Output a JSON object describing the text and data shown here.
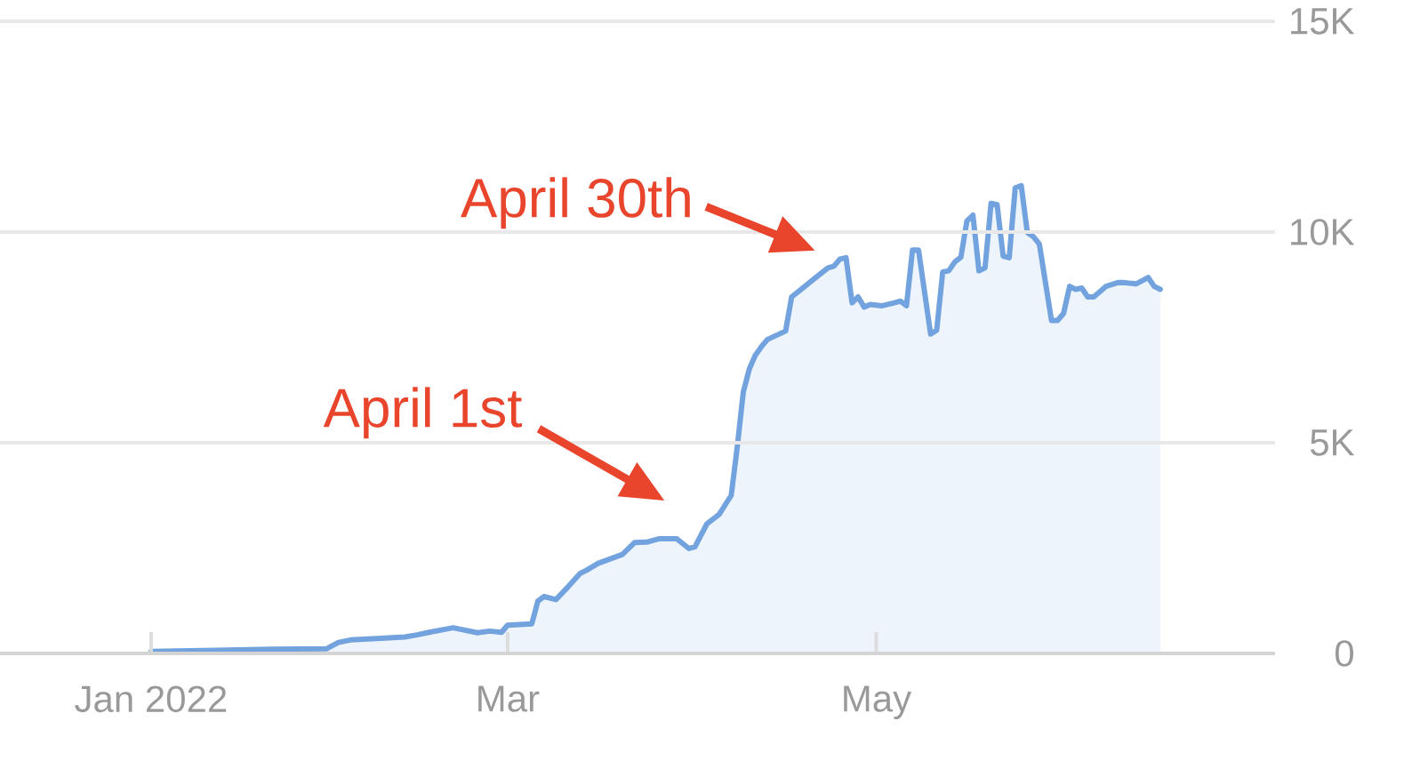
{
  "chart_data": {
    "type": "area",
    "x": [
      "2022-01-01",
      "2022-01-21",
      "2022-01-30",
      "2022-02-01",
      "2022-02-03",
      "2022-02-08",
      "2022-02-12",
      "2022-02-14",
      "2022-02-16",
      "2022-02-20",
      "2022-02-24",
      "2022-02-26",
      "2022-02-28",
      "2022-03-01",
      "2022-03-05",
      "2022-03-06",
      "2022-03-07",
      "2022-03-09",
      "2022-03-11",
      "2022-03-13",
      "2022-03-14",
      "2022-03-16",
      "2022-03-20",
      "2022-03-22",
      "2022-03-24",
      "2022-03-26",
      "2022-03-29",
      "2022-03-31",
      "2022-04-01",
      "2022-04-03",
      "2022-04-05",
      "2022-04-07",
      "2022-04-08",
      "2022-04-09",
      "2022-04-10",
      "2022-04-11",
      "2022-04-12",
      "2022-04-13",
      "2022-04-16",
      "2022-04-17",
      "2022-04-19",
      "2022-04-21",
      "2022-04-23",
      "2022-04-24",
      "2022-04-25",
      "2022-04-26",
      "2022-04-27",
      "2022-04-28",
      "2022-04-29",
      "2022-04-30",
      "2022-05-02",
      "2022-05-04",
      "2022-05-05",
      "2022-05-06",
      "2022-05-07",
      "2022-05-08",
      "2022-05-10",
      "2022-05-11",
      "2022-05-12",
      "2022-05-13",
      "2022-05-14",
      "2022-05-15",
      "2022-05-16",
      "2022-05-17",
      "2022-05-18",
      "2022-05-19",
      "2022-05-20",
      "2022-05-21",
      "2022-05-22",
      "2022-05-23",
      "2022-05-24",
      "2022-05-25",
      "2022-05-26",
      "2022-05-27",
      "2022-05-28",
      "2022-05-30",
      "2022-05-31",
      "2022-06-01",
      "2022-06-02",
      "2022-06-03",
      "2022-06-04",
      "2022-06-05",
      "2022-06-06",
      "2022-06-08",
      "2022-06-10",
      "2022-06-11",
      "2022-06-13",
      "2022-06-15",
      "2022-06-16",
      "2022-06-17"
    ],
    "values": [
      50,
      100,
      110,
      260,
      320,
      360,
      390,
      440,
      500,
      610,
      490,
      530,
      500,
      670,
      700,
      1240,
      1350,
      1280,
      1580,
      1900,
      1970,
      2140,
      2350,
      2630,
      2640,
      2720,
      2720,
      2490,
      2530,
      3080,
      3300,
      3750,
      4900,
      6200,
      6750,
      7080,
      7280,
      7450,
      7650,
      8460,
      8690,
      8920,
      9150,
      9190,
      9360,
      9390,
      8320,
      8460,
      8220,
      8280,
      8250,
      8320,
      8360,
      8250,
      9570,
      9570,
      7580,
      7670,
      9050,
      9080,
      9290,
      9400,
      10260,
      10400,
      9080,
      9150,
      10680,
      10650,
      9430,
      9390,
      11050,
      11100,
      9990,
      9890,
      9710,
      7900,
      7900,
      8070,
      8710,
      8640,
      8670,
      8460,
      8460,
      8710,
      8800,
      8800,
      8770,
      8920,
      8710,
      8640
    ],
    "color": "#72a3de",
    "xlim": [
      "2021-12-07",
      "2022-07-06"
    ],
    "xticks": [
      {
        "value": "2022-01-01",
        "label": "Jan 2022"
      },
      {
        "value": "2022-03-01",
        "label": "Mar"
      },
      {
        "value": "2022-05-01",
        "label": "May"
      }
    ],
    "ylim": [
      0,
      15000
    ],
    "yticks": [
      0,
      {
        "value": 5000,
        "label": "5K"
      },
      {
        "value": 10000,
        "label": "10K"
      },
      {
        "value": 15000,
        "label": "15K"
      }
    ],
    "grid": "y",
    "annotations": [
      "April 1st",
      "April 30th"
    ]
  }
}
